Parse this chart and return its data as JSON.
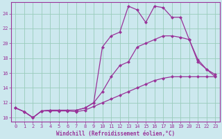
{
  "xlabel": "Windchill (Refroidissement éolien,°C)",
  "bg_color": "#cce8ee",
  "line_color": "#993399",
  "grid_color": "#99ccbb",
  "xlim": [
    -0.5,
    23.5
  ],
  "ylim": [
    9.5,
    25.5
  ],
  "yticks": [
    10,
    12,
    14,
    16,
    18,
    20,
    22,
    24
  ],
  "xticks": [
    0,
    1,
    2,
    3,
    4,
    5,
    6,
    7,
    8,
    9,
    10,
    11,
    12,
    13,
    14,
    15,
    16,
    17,
    18,
    19,
    20,
    21,
    22,
    23
  ],
  "line1_x": [
    0,
    1,
    2,
    3,
    4,
    5,
    6,
    7,
    8,
    9,
    10,
    11,
    12,
    13,
    14,
    15,
    16,
    17,
    18,
    19,
    20,
    21,
    22,
    23
  ],
  "line1_y": [
    11.3,
    10.8,
    10.0,
    10.9,
    10.9,
    10.9,
    10.9,
    10.8,
    11.0,
    11.5,
    12.0,
    12.5,
    13.0,
    13.5,
    14.0,
    14.5,
    15.0,
    15.3,
    15.5,
    15.5,
    15.5,
    15.5,
    15.5,
    15.5
  ],
  "line2_x": [
    0,
    1,
    2,
    3,
    4,
    5,
    6,
    7,
    8,
    9,
    10,
    11,
    12,
    13,
    14,
    15,
    16,
    17,
    18,
    19,
    20,
    21,
    22,
    23
  ],
  "line2_y": [
    11.3,
    10.8,
    10.0,
    10.9,
    11.0,
    11.0,
    11.0,
    11.0,
    11.3,
    12.0,
    13.5,
    15.5,
    17.0,
    17.5,
    19.5,
    20.0,
    20.5,
    21.0,
    21.0,
    20.8,
    20.5,
    17.5,
    16.5,
    15.5
  ],
  "line3_x": [
    0,
    1,
    2,
    3,
    4,
    5,
    6,
    7,
    8,
    9,
    10,
    11,
    12,
    13,
    14,
    15,
    16,
    17,
    18,
    19,
    20,
    21,
    22,
    23
  ],
  "line3_y": [
    11.3,
    10.8,
    10.0,
    10.9,
    11.0,
    11.0,
    11.0,
    11.0,
    11.3,
    12.0,
    19.5,
    21.0,
    21.5,
    25.0,
    24.5,
    22.8,
    25.0,
    24.8,
    23.5,
    23.5,
    20.5,
    17.8,
    16.5,
    15.8
  ],
  "marker": "D",
  "markersize": 2.5,
  "linewidth": 0.9,
  "xlabel_fontsize": 5.5,
  "tick_fontsize": 5.0
}
